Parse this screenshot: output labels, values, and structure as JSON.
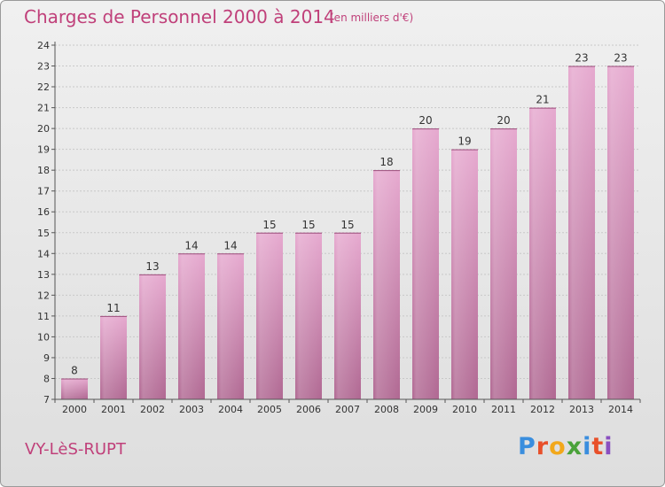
{
  "header": {
    "title": "Charges de Personnel 2000 à 2014",
    "subtitle": "(en milliers d'€)"
  },
  "footer": {
    "commune": "VY-LèS-RUPT",
    "logo_letters": [
      "P",
      "r",
      "o",
      "x",
      "i",
      "t",
      "i"
    ],
    "logo_colors": [
      "#3a8ede",
      "#e8502a",
      "#f2a81b",
      "#4aa23a",
      "#3a8ede",
      "#e8502a",
      "#8a4fc0"
    ]
  },
  "chart_data": {
    "type": "bar",
    "categories": [
      "2000",
      "2001",
      "2002",
      "2003",
      "2004",
      "2005",
      "2006",
      "2007",
      "2008",
      "2009",
      "2010",
      "2011",
      "2012",
      "2013",
      "2014"
    ],
    "values": [
      8,
      11,
      13,
      14,
      14,
      15,
      15,
      15,
      18,
      20,
      19,
      20,
      21,
      23,
      23
    ],
    "ylim": [
      7,
      24
    ],
    "yticks": [
      7,
      8,
      9,
      10,
      11,
      12,
      13,
      14,
      15,
      16,
      17,
      18,
      19,
      20,
      21,
      22,
      23,
      24
    ],
    "grid": true,
    "bar_color": "#d68fb8"
  }
}
